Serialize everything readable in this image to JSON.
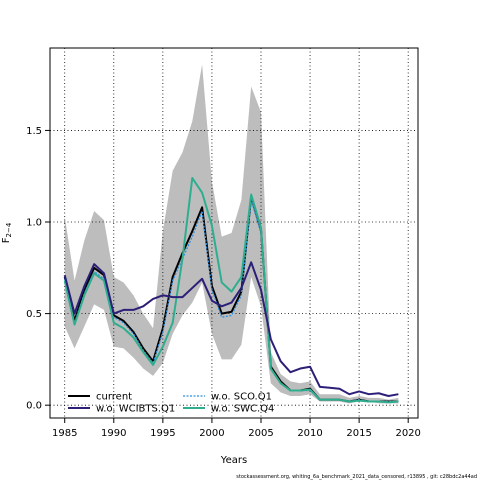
{
  "chart_data": {
    "type": "line",
    "xlabel": "Years",
    "ylabel_main": "F",
    "ylabel_sub": "2−4",
    "xlim": [
      1983.5,
      2021
    ],
    "ylim": [
      -0.07,
      1.95
    ],
    "xticks": [
      1985,
      1990,
      1995,
      2000,
      2005,
      2010,
      2015,
      2020
    ],
    "yticks": [
      0.0,
      0.5,
      1.0,
      1.5
    ],
    "ytick_labels": [
      "0.0",
      "0.5",
      "1.0",
      "1.5"
    ],
    "grid": true,
    "legend_position": "bottom-left",
    "x": [
      1985,
      1986,
      1987,
      1988,
      1989,
      1990,
      1991,
      1992,
      1993,
      1994,
      1995,
      1996,
      1997,
      1998,
      1999,
      2000,
      2001,
      2002,
      2003,
      2004,
      2005,
      2006,
      2007,
      2008,
      2009,
      2010,
      2011,
      2012,
      2013,
      2014,
      2015,
      2016,
      2017,
      2018,
      2019
    ],
    "band": {
      "upper": [
        1.03,
        0.68,
        0.9,
        1.06,
        1.01,
        0.7,
        0.67,
        0.6,
        0.5,
        0.42,
        0.95,
        1.28,
        1.38,
        1.55,
        1.86,
        1.22,
        0.92,
        0.94,
        1.12,
        1.74,
        1.6,
        0.29,
        0.17,
        0.13,
        0.12,
        0.13,
        0.06,
        0.06,
        0.06,
        0.04,
        0.05,
        0.04,
        0.04,
        0.03,
        0.04
      ],
      "lower": [
        0.43,
        0.31,
        0.43,
        0.55,
        0.52,
        0.32,
        0.31,
        0.26,
        0.2,
        0.16,
        0.23,
        0.39,
        0.49,
        0.56,
        0.67,
        0.39,
        0.25,
        0.25,
        0.33,
        0.7,
        0.54,
        0.12,
        0.07,
        0.05,
        0.05,
        0.06,
        0.02,
        0.02,
        0.02,
        0.01,
        0.02,
        0.02,
        0.01,
        0.01,
        0.01
      ]
    },
    "series": [
      {
        "name": "current",
        "color": "#000000",
        "dash": "solid",
        "values": [
          0.7,
          0.46,
          0.63,
          0.75,
          0.71,
          0.49,
          0.46,
          0.4,
          0.31,
          0.24,
          0.42,
          0.7,
          0.83,
          0.95,
          1.08,
          0.65,
          0.5,
          0.51,
          0.62,
          1.14,
          0.96,
          0.21,
          0.13,
          0.08,
          0.08,
          0.09,
          0.03,
          0.03,
          0.03,
          0.02,
          0.03,
          0.02,
          0.02,
          0.02,
          0.02
        ]
      },
      {
        "name": "w.o. WCIBTS.Q1",
        "color": "#2c1f78",
        "dash": "solid",
        "values": [
          0.71,
          0.5,
          0.65,
          0.77,
          0.72,
          0.5,
          0.52,
          0.52,
          0.54,
          0.58,
          0.6,
          0.59,
          0.59,
          0.64,
          0.69,
          0.57,
          0.54,
          0.56,
          0.64,
          0.78,
          0.63,
          0.36,
          0.24,
          0.18,
          0.2,
          0.21,
          0.1,
          0.095,
          0.09,
          0.06,
          0.075,
          0.06,
          0.065,
          0.05,
          0.06
        ]
      },
      {
        "name": "w.o. SCO.Q1",
        "color": "#2f8de0",
        "dash": "dotted",
        "values": [
          0.69,
          0.45,
          0.61,
          0.73,
          0.69,
          0.48,
          0.45,
          0.39,
          0.3,
          0.23,
          0.4,
          0.68,
          0.8,
          0.92,
          1.06,
          0.63,
          0.48,
          0.49,
          0.6,
          1.12,
          0.94,
          0.2,
          0.12,
          0.08,
          0.08,
          0.08,
          0.03,
          0.03,
          0.03,
          0.02,
          0.03,
          0.02,
          0.02,
          0.02,
          0.02
        ]
      },
      {
        "name": "w.o. SWC.Q4",
        "color": "#2fae8f",
        "dash": "solid",
        "values": [
          0.68,
          0.44,
          0.6,
          0.72,
          0.68,
          0.45,
          0.42,
          0.37,
          0.29,
          0.22,
          0.32,
          0.45,
          0.8,
          1.24,
          1.16,
          0.98,
          0.67,
          0.62,
          0.7,
          1.15,
          0.97,
          0.2,
          0.12,
          0.08,
          0.08,
          0.085,
          0.03,
          0.03,
          0.03,
          0.02,
          0.025,
          0.02,
          0.02,
          0.015,
          0.02
        ]
      }
    ],
    "colors": {
      "band": "#bdbdbd",
      "grid": "#000000"
    }
  },
  "footer": "stockassessment.org, whiting_6a_benchmark_2021_data_censored, r13895 , git: c28bdc2a44ad"
}
